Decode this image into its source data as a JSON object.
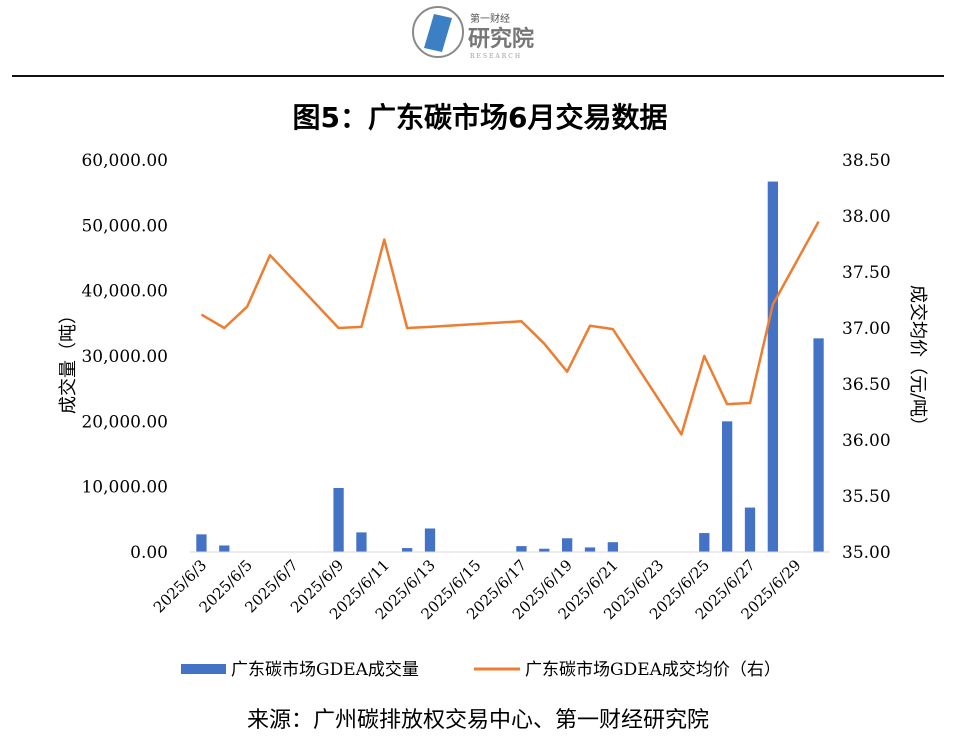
{
  "logo": {
    "text_small": "第一财经",
    "text_main": "研究院",
    "text_sub": "RESEARCH",
    "brand_color": "#3d7fc4"
  },
  "source_text": "来源：广州碳排放权交易中心、第一财经研究院",
  "chart_data": {
    "type": "bar+line",
    "title": "图5：广东碳市场6月交易数据",
    "ylabel_left": "成交量（吨）",
    "ylabel_right": "成交均价（元/吨）",
    "ylim_left": [
      0,
      60000
    ],
    "ylim_right": [
      35.0,
      38.5
    ],
    "left_ticks": [
      "0.00",
      "10,000.00",
      "20,000.00",
      "30,000.00",
      "40,000.00",
      "50,000.00",
      "60,000.00"
    ],
    "left_tick_values": [
      0,
      10000,
      20000,
      30000,
      40000,
      50000,
      60000
    ],
    "right_ticks": [
      "35.00",
      "35.50",
      "36.00",
      "36.50",
      "37.00",
      "37.50",
      "38.00",
      "38.50"
    ],
    "right_tick_values": [
      35.0,
      35.5,
      36.0,
      36.5,
      37.0,
      37.5,
      38.0,
      38.5
    ],
    "x_tick_labels": [
      "2025/6/3",
      "2025/6/5",
      "2025/6/7",
      "2025/6/9",
      "2025/6/11",
      "2025/6/13",
      "2025/6/15",
      "2025/6/17",
      "2025/6/19",
      "2025/6/21",
      "2025/6/23",
      "2025/6/25",
      "2025/6/27",
      "2025/6/29"
    ],
    "dates": [
      "2025/6/3",
      "2025/6/4",
      "2025/6/5",
      "2025/6/6",
      "2025/6/7",
      "2025/6/8",
      "2025/6/9",
      "2025/6/10",
      "2025/6/11",
      "2025/6/12",
      "2025/6/13",
      "2025/6/14",
      "2025/6/15",
      "2025/6/16",
      "2025/6/17",
      "2025/6/18",
      "2025/6/19",
      "2025/6/20",
      "2025/6/21",
      "2025/6/22",
      "2025/6/23",
      "2025/6/24",
      "2025/6/25",
      "2025/6/26",
      "2025/6/27",
      "2025/6/28",
      "2025/6/29",
      "2025/6/30"
    ],
    "grid": false,
    "legend_position": "bottom",
    "series": [
      {
        "name": "广东碳市场GDEA成交量",
        "type": "bar",
        "axis": "left",
        "color": "#4472c4",
        "values": [
          2700,
          1000,
          0,
          0,
          0,
          0,
          9800,
          3000,
          0,
          600,
          3600,
          0,
          0,
          0,
          900,
          500,
          2100,
          700,
          1500,
          0,
          0,
          0,
          2900,
          20000,
          6800,
          56700,
          0,
          32700
        ]
      },
      {
        "name": "广东碳市场GDEA成交均价（右）",
        "type": "line",
        "axis": "right",
        "color": "#ed7d31",
        "points": [
          [
            "2025/6/3",
            37.12
          ],
          [
            "2025/6/4",
            37.0
          ],
          [
            "2025/6/5",
            37.19
          ],
          [
            "2025/6/6",
            37.65
          ],
          [
            "2025/6/9",
            37.0
          ],
          [
            "2025/6/10",
            37.01
          ],
          [
            "2025/6/11",
            37.79
          ],
          [
            "2025/6/12",
            37.0
          ],
          [
            "2025/6/13",
            37.01
          ],
          [
            "2025/6/17",
            37.06
          ],
          [
            "2025/6/18",
            36.86
          ],
          [
            "2025/6/19",
            36.61
          ],
          [
            "2025/6/20",
            37.02
          ],
          [
            "2025/6/21",
            36.99
          ],
          [
            "2025/6/24",
            36.05
          ],
          [
            "2025/6/25",
            36.75
          ],
          [
            "2025/6/26",
            36.32
          ],
          [
            "2025/6/27",
            36.33
          ],
          [
            "2025/6/28",
            37.21
          ],
          [
            "2025/6/30",
            37.95
          ]
        ]
      }
    ]
  }
}
